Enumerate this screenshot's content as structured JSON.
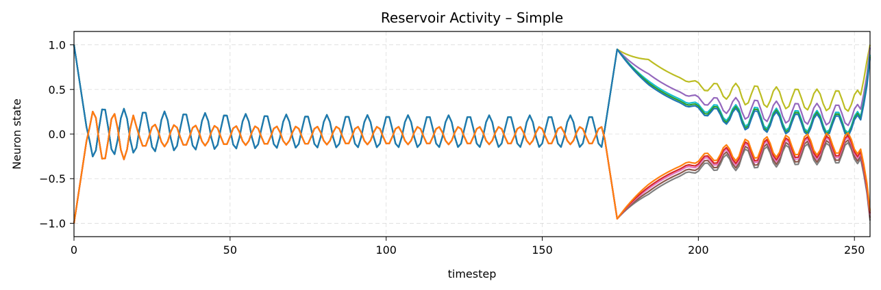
{
  "chart_data": {
    "type": "line",
    "title": "Reservoir Activity – Simple",
    "xlabel": "timestep",
    "ylabel": "Neuron state",
    "xlim": [
      0,
      255
    ],
    "ylim": [
      -1.15,
      1.15
    ],
    "xticks": [
      0,
      50,
      100,
      150,
      200,
      250
    ],
    "yticks": [
      1.0,
      0.5,
      0.0,
      -0.5,
      -1.0
    ],
    "xtick_labels": [
      "0",
      "50",
      "100",
      "150",
      "200",
      "250"
    ],
    "ytick_labels": [
      "1.0",
      "0.5",
      "0.0",
      "−0.5",
      "−1.0"
    ],
    "grid": true,
    "series_description": "10 neuron traces; 5 positive-group traces start near +1, oscillate with period ~6.5 steps (amplitude ~0.18-0.3) until step ~170, spike to ~0.95 at step ~174 then decay with oscillation to ~0.1 by step ~250; 5 negative-group traces mirror them (start -1, spike to -0.95, rise toward -0.1).",
    "series": [
      {
        "group": "positive",
        "color": "#bcbd22",
        "offset": 0.12
      },
      {
        "group": "positive",
        "color": "#9467bd",
        "offset": 0.04
      },
      {
        "group": "positive",
        "color": "#17becf",
        "offset": 0.0
      },
      {
        "group": "positive",
        "color": "#2ca02c",
        "offset": -0.01
      },
      {
        "group": "positive",
        "color": "#1f77b4",
        "offset": -0.02
      },
      {
        "group": "negative",
        "color": "#7f7f7f",
        "offset": -0.04
      },
      {
        "group": "negative",
        "color": "#8c564b",
        "offset": -0.025
      },
      {
        "group": "negative",
        "color": "#e377c2",
        "offset": -0.01
      },
      {
        "group": "negative",
        "color": "#d62728",
        "offset": 0.0
      },
      {
        "group": "negative",
        "color": "#ff7f0e",
        "offset": 0.015
      }
    ]
  }
}
